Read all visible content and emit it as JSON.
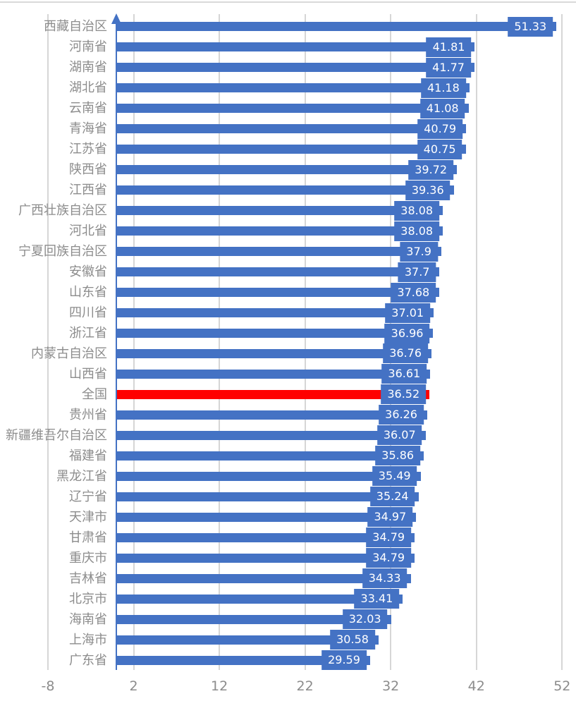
{
  "chart_data": {
    "type": "bar",
    "orientation": "horizontal",
    "title": "",
    "xlabel": "",
    "ylabel": "",
    "legend": "none",
    "grid": "vertical",
    "xlim": [
      -8,
      52
    ],
    "bar_baseline": 0,
    "x_ticks": [
      -8,
      2,
      12,
      22,
      32,
      42,
      52
    ],
    "x_tick_labels": [
      "-8",
      "2",
      "12",
      "22",
      "32",
      "42",
      "52"
    ],
    "categories": [
      "西藏自治区",
      "河南省",
      "湖南省",
      "湖北省",
      "云南省",
      "青海省",
      "江苏省",
      "陕西省",
      "江西省",
      "广西壮族自治区",
      "河北省",
      "宁夏回族自治区",
      "安徽省",
      "山东省",
      "四川省",
      "浙江省",
      "内蒙古自治区",
      "山西省",
      "全国",
      "贵州省",
      "新疆维吾尔自治区",
      "福建省",
      "黑龙江省",
      "辽宁省",
      "天津市",
      "甘肃省",
      "重庆市",
      "吉林省",
      "北京市",
      "海南省",
      "上海市",
      "广东省"
    ],
    "values": [
      51.33,
      41.81,
      41.77,
      41.18,
      41.08,
      40.79,
      40.75,
      39.72,
      39.36,
      38.08,
      38.08,
      37.9,
      37.7,
      37.68,
      37.01,
      36.96,
      36.76,
      36.61,
      36.52,
      36.26,
      36.07,
      35.86,
      35.49,
      35.24,
      34.97,
      34.79,
      34.79,
      34.33,
      33.41,
      32.03,
      30.58,
      29.59
    ],
    "value_labels": [
      "51.33",
      "41.81",
      "41.77",
      "41.18",
      "41.08",
      "40.79",
      "40.75",
      "39.72",
      "39.36",
      "38.08",
      "38.08",
      "37.9",
      "37.7",
      "37.68",
      "37.01",
      "36.96",
      "36.76",
      "36.61",
      "36.52",
      "36.26",
      "36.07",
      "35.86",
      "35.49",
      "35.24",
      "34.97",
      "34.79",
      "34.79",
      "34.33",
      "33.41",
      "32.03",
      "30.58",
      "29.59"
    ],
    "highlight_index": 18,
    "highlight_category": "全国",
    "colors": {
      "bar": "#4472C4",
      "highlight_bar": "#FF0000",
      "value_label_bg": "#4472C4",
      "value_label_text": "#FFFFFF",
      "category_text": "#8C8C8C",
      "tick_text": "#8C8C8C",
      "gridline": "#D6D6D6",
      "axis_line": "#4472C4",
      "background": "#FFFFFF",
      "top_border": "#D9D9D9"
    }
  }
}
